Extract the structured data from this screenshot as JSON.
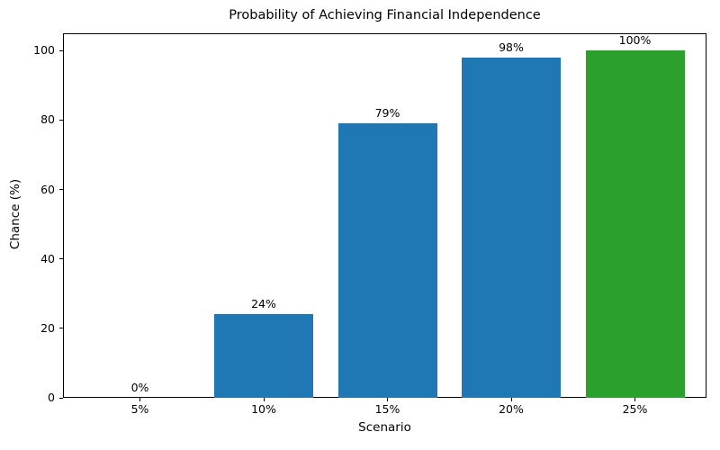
{
  "chart_data": {
    "type": "bar",
    "title": "Probability of Achieving Financial Independence",
    "xlabel": "Scenario",
    "ylabel": "Chance (%)",
    "categories": [
      "5%",
      "10%",
      "15%",
      "20%",
      "25%"
    ],
    "values": [
      0,
      24,
      79,
      98,
      100
    ],
    "bar_labels": [
      "0%",
      "24%",
      "79%",
      "98%",
      "100%"
    ],
    "bar_colors": [
      "#1f77b4",
      "#1f77b4",
      "#1f77b4",
      "#1f77b4",
      "#2ca02c"
    ],
    "yticks": [
      0,
      20,
      40,
      60,
      80,
      100
    ],
    "ylim": [
      0,
      105
    ],
    "grid": false,
    "legend": false,
    "background_color": "#ffffff",
    "spine_color": "#000000"
  }
}
